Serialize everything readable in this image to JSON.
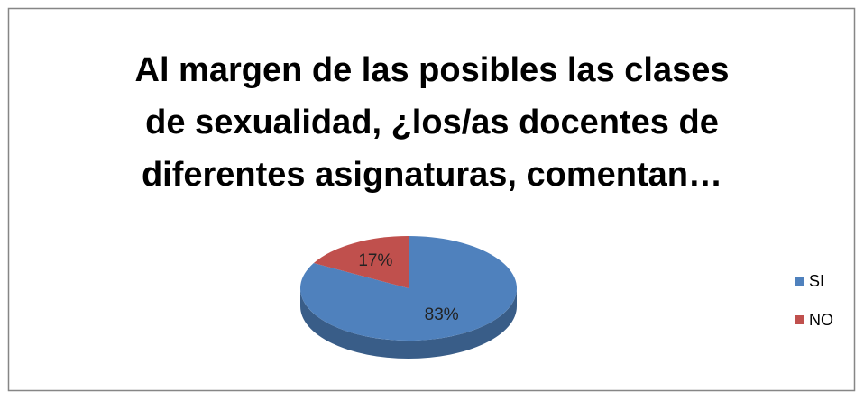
{
  "chart_data": {
    "type": "pie3d",
    "title": [
      "Al margen de las posibles las clases",
      "de sexualidad, ¿los/as docentes de",
      "diferentes asignaturas, comentan…"
    ],
    "categories": [
      "SI",
      "NO"
    ],
    "values": [
      83,
      17
    ],
    "value_labels": [
      "83%",
      "17%"
    ],
    "colors": [
      "#4f81bd",
      "#c0504d"
    ],
    "legend": "right"
  }
}
